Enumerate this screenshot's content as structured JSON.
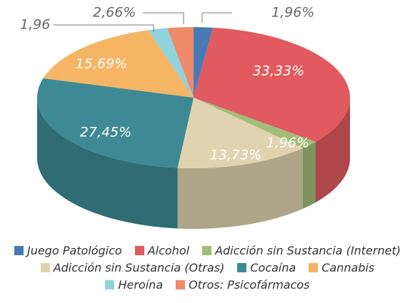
{
  "chart_data": {
    "type": "pie",
    "categories": [
      "Juego Patológico",
      "Alcohol",
      "Adicción sin Sustancia (Internet)",
      "Adicción sin Sustancia (Otras)",
      "Cocaína",
      "Cannabis",
      "Heroína",
      "Otros: Psicofármacos"
    ],
    "values": [
      1.96,
      33.33,
      1.96,
      13.73,
      27.45,
      15.69,
      1.96,
      2.66
    ],
    "value_labels": [
      "1,96%",
      "33,33%",
      "1,96%",
      "13,73%",
      "27,45%",
      "15,69%",
      "1,96",
      "2,66%"
    ],
    "colors": [
      "#4a7ab5",
      "#e05a5f",
      "#a3bd78",
      "#e0d4b0",
      "#3d8a94",
      "#f5b565",
      "#8fd3dc",
      "#ef8a6a"
    ]
  }
}
